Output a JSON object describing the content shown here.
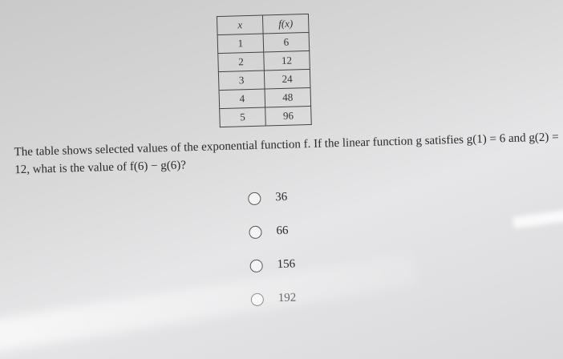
{
  "table": {
    "headers": [
      "x",
      "f(x)"
    ],
    "rows": [
      [
        1,
        6
      ],
      [
        2,
        12
      ],
      [
        3,
        24
      ],
      [
        4,
        48
      ],
      [
        5,
        96
      ]
    ]
  },
  "question": "The table shows selected values of the exponential function f. If the linear function g satisfies g(1) = 6 and g(2) = 12, what is the value of f(6) − g(6)?",
  "options": [
    "36",
    "66",
    "156",
    "192"
  ]
}
